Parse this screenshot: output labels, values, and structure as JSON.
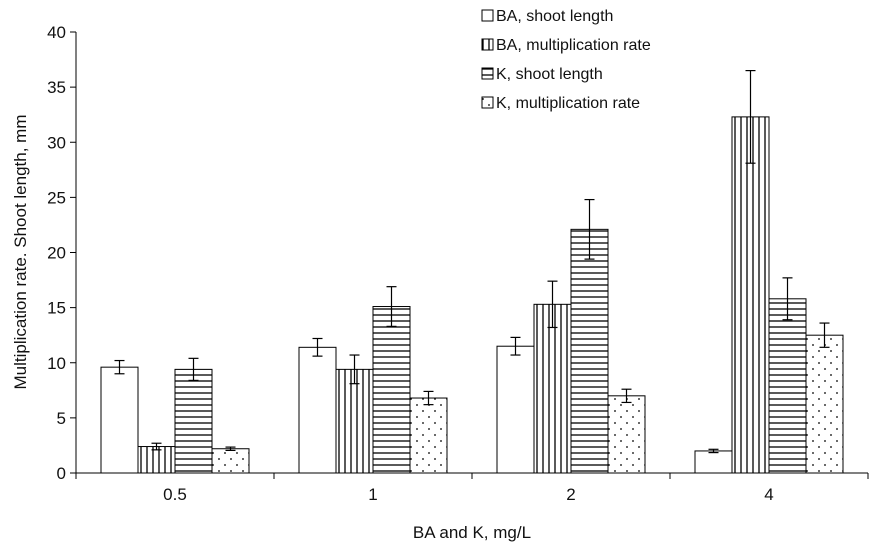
{
  "chart_data": {
    "type": "bar",
    "title": "",
    "xlabel": "BA and K, mg/L",
    "ylabel": "Multiplication rate. Shoot length, mm",
    "categories": [
      "0.5",
      "1",
      "2",
      "4"
    ],
    "ylim": [
      0,
      40
    ],
    "yticks": [
      0,
      5,
      10,
      15,
      20,
      25,
      30,
      35,
      40
    ],
    "grid": false,
    "legend_position": "top-center",
    "series": [
      {
        "name": "BA, shoot length",
        "pattern": "blank",
        "values": [
          9.6,
          11.4,
          11.5,
          2.0
        ],
        "errors": [
          0.6,
          0.8,
          0.8,
          0.15
        ]
      },
      {
        "name": "BA, multiplication rate",
        "pattern": "vertical-lines",
        "values": [
          2.4,
          9.4,
          15.3,
          32.3
        ],
        "errors": [
          0.3,
          1.3,
          2.1,
          4.2
        ]
      },
      {
        "name": "K, shoot length",
        "pattern": "horizontal-lines",
        "values": [
          9.4,
          15.1,
          22.1,
          15.8
        ],
        "errors": [
          1.0,
          1.8,
          2.7,
          1.9
        ]
      },
      {
        "name": "K, multiplication rate",
        "pattern": "dots",
        "values": [
          2.2,
          6.8,
          7.0,
          12.5
        ],
        "errors": [
          0.15,
          0.6,
          0.6,
          1.1
        ]
      }
    ]
  }
}
